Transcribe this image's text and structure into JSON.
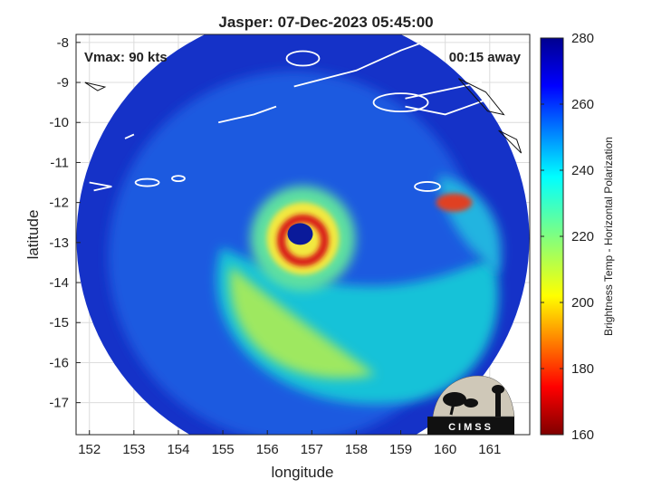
{
  "chart_data": {
    "type": "heatmap",
    "title": "Jasper: 07-Dec-2023 05:45:00",
    "xlabel": "longitude",
    "ylabel": "latitude",
    "xlim": [
      151.7,
      161.9
    ],
    "ylim": [
      -17.8,
      -7.8
    ],
    "x_ticks": [
      152,
      153,
      154,
      155,
      156,
      157,
      158,
      159,
      160,
      161
    ],
    "y_ticks": [
      -8,
      -9,
      -10,
      -11,
      -12,
      -13,
      -14,
      -15,
      -16,
      -17
    ],
    "grid": true,
    "annotations": {
      "vmax": "Vmax: 90 kts",
      "time_offset": "00:15 away"
    },
    "storm_center": {
      "lon": 156.8,
      "lat": -12.9
    },
    "swath_center": {
      "lon": 156.8,
      "lat": -12.9
    },
    "colorbar": {
      "label": "Brightness Temp - Horizontal Polarization",
      "range": [
        160,
        280
      ],
      "ticks": [
        160,
        180,
        200,
        220,
        240,
        260,
        280
      ],
      "colormap": "jet"
    },
    "logo": {
      "text": "CIMSS"
    }
  },
  "colors": {
    "ocean": "#1a4fd6",
    "outer_swath": "#1532c8",
    "warm_core": "#d81818",
    "frame": "#222222",
    "land_outline": "#ffffff"
  }
}
